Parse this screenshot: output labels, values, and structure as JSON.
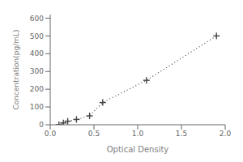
{
  "chart_data": {
    "type": "line",
    "xlabel": "Optical Density",
    "ylabel": "Concentration(pg/mL)",
    "x": [
      0.1,
      0.15,
      0.2,
      0.3,
      0.45,
      0.6,
      1.1,
      1.9
    ],
    "values": [
      0,
      10,
      20,
      30,
      50,
      125,
      250,
      500
    ],
    "xlim": [
      0.0,
      2.0
    ],
    "ylim": [
      0,
      620
    ],
    "xticks": [
      {
        "value": 0,
        "label": "0.0"
      },
      0.5,
      {
        "value": 1,
        "label": "1.0"
      },
      1.5,
      {
        "value": 2,
        "label": "2.0"
      }
    ],
    "yticks": [
      0,
      100,
      200,
      300,
      400,
      500,
      600
    ],
    "color": "#444444",
    "marker": "plus",
    "line_style": "dotted",
    "grid": false
  }
}
